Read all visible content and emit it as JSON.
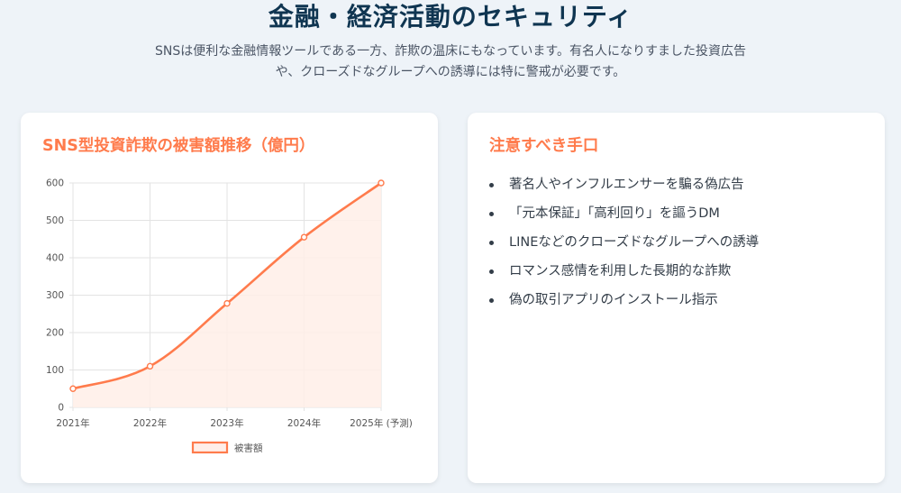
{
  "header": {
    "title": "金融・経済活動のセキュリティ",
    "subtitle_line1": "SNSは便利な金融情報ツールである一方、詐欺の温床にもなっています。有名人になりすました投資広告",
    "subtitle_line2": "や、クローズドなグループへの誘導には特に警戒が必要です。"
  },
  "chart_card": {
    "title": "SNS型投資詐欺の被害額推移（億円）"
  },
  "chart_data": {
    "type": "area",
    "categories": [
      "2021年",
      "2022年",
      "2023年",
      "2024年",
      "2025年 (予測)"
    ],
    "series": [
      {
        "name": "被害額",
        "values": [
          50,
          110,
          278,
          455,
          600
        ]
      }
    ],
    "ylim": [
      0,
      600
    ],
    "yticks": [
      0,
      100,
      200,
      300,
      400,
      500,
      600
    ],
    "grid": true,
    "legend_position": "bottom",
    "colors": {
      "line": "#ff7b4c",
      "fill": "#ffeee8"
    }
  },
  "tactics_card": {
    "title": "注意すべき手口",
    "items": [
      "著名人やインフルエンサーを騙る偽広告",
      "「元本保証」「高利回り」を謳うDM",
      "LINEなどのクローズドなグループへの誘導",
      "ロマンス感情を利用した長期的な詐欺",
      "偽の取引アプリのインストール指示"
    ]
  }
}
